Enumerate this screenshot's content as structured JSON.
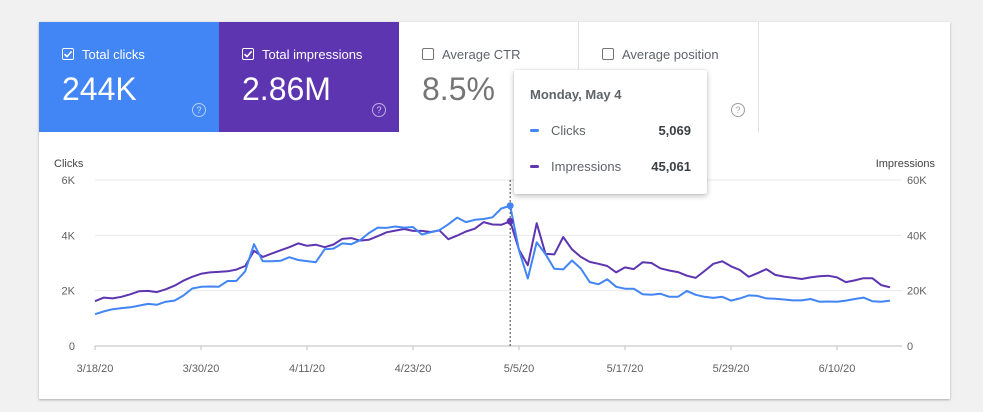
{
  "metrics": [
    {
      "label": "Total clicks",
      "value": "244K",
      "checked": true,
      "color": "#4285f4"
    },
    {
      "label": "Total impressions",
      "value": "2.86M",
      "checked": true,
      "color": "#5e35b1"
    },
    {
      "label": "Average CTR",
      "value": "8.5%",
      "checked": false
    },
    {
      "label": "Average position",
      "value": "6.6",
      "checked": false
    }
  ],
  "help_glyph": "?",
  "tooltip": {
    "date": "Monday, May 4",
    "rows": [
      {
        "label": "Clicks",
        "value": "5,069",
        "color": "#4285f4"
      },
      {
        "label": "Impressions",
        "value": "45,061",
        "color": "#5e35b1"
      }
    ]
  },
  "chart_data": {
    "type": "line",
    "x_label_left": "Clicks",
    "y_label_right": "Impressions",
    "y_left_ticks": [
      "0",
      "2K",
      "4K",
      "6K"
    ],
    "y_right_ticks": [
      "0",
      "20K",
      "40K",
      "60K"
    ],
    "y_left_range": [
      0,
      6000
    ],
    "y_right_range": [
      0,
      60000
    ],
    "x_tick_labels": [
      "3/18/20",
      "3/30/20",
      "4/11/20",
      "4/23/20",
      "5/5/20",
      "5/17/20",
      "5/29/20",
      "6/10/20"
    ],
    "x_tick_day_index": [
      0,
      12,
      24,
      36,
      48,
      60,
      72,
      84
    ],
    "hover_day_index": 47,
    "grid": true,
    "series": [
      {
        "name": "Clicks",
        "color": "#4285f4",
        "axis": "left",
        "values": [
          1150,
          1250,
          1330,
          1370,
          1400,
          1460,
          1520,
          1490,
          1600,
          1640,
          1820,
          2080,
          2140,
          2150,
          2140,
          2350,
          2350,
          2700,
          3680,
          3060,
          3060,
          3080,
          3210,
          3110,
          3070,
          3030,
          3500,
          3520,
          3710,
          3680,
          3820,
          4080,
          4280,
          4270,
          4320,
          4280,
          4300,
          4030,
          4110,
          4190,
          4400,
          4640,
          4480,
          4560,
          4590,
          4650,
          4970,
          5069,
          3460,
          2440,
          3750,
          3320,
          2790,
          2770,
          3090,
          2800,
          2310,
          2230,
          2410,
          2140,
          2070,
          2070,
          1870,
          1850,
          1890,
          1780,
          1780,
          1990,
          1850,
          1780,
          1740,
          1780,
          1640,
          1720,
          1830,
          1810,
          1720,
          1710,
          1680,
          1650,
          1650,
          1700,
          1600,
          1610,
          1600,
          1640,
          1700,
          1750,
          1620,
          1600,
          1640
        ]
      },
      {
        "name": "Impressions",
        "color": "#5e35b1",
        "axis": "right",
        "values": [
          16200,
          17500,
          17200,
          17800,
          18700,
          19800,
          19900,
          19500,
          20500,
          21800,
          23600,
          25000,
          26100,
          26600,
          26800,
          27000,
          27600,
          28900,
          34400,
          32200,
          33400,
          34600,
          35700,
          37100,
          36200,
          36600,
          35700,
          36700,
          38700,
          39000,
          38100,
          38400,
          39700,
          41100,
          41700,
          42300,
          41600,
          41600,
          41200,
          41800,
          38600,
          39900,
          41400,
          42400,
          44800,
          43900,
          43800,
          45061,
          34800,
          29200,
          44400,
          33300,
          33100,
          39400,
          34900,
          32200,
          30400,
          29700,
          28900,
          26600,
          28400,
          27800,
          30300,
          30000,
          28100,
          27300,
          26700,
          25400,
          24600,
          27100,
          29700,
          30600,
          28800,
          27500,
          25000,
          26300,
          27800,
          25700,
          25100,
          24700,
          24200,
          24800,
          25200,
          25400,
          24800,
          23100,
          23700,
          24500,
          24500,
          22000,
          21200
        ]
      }
    ]
  }
}
